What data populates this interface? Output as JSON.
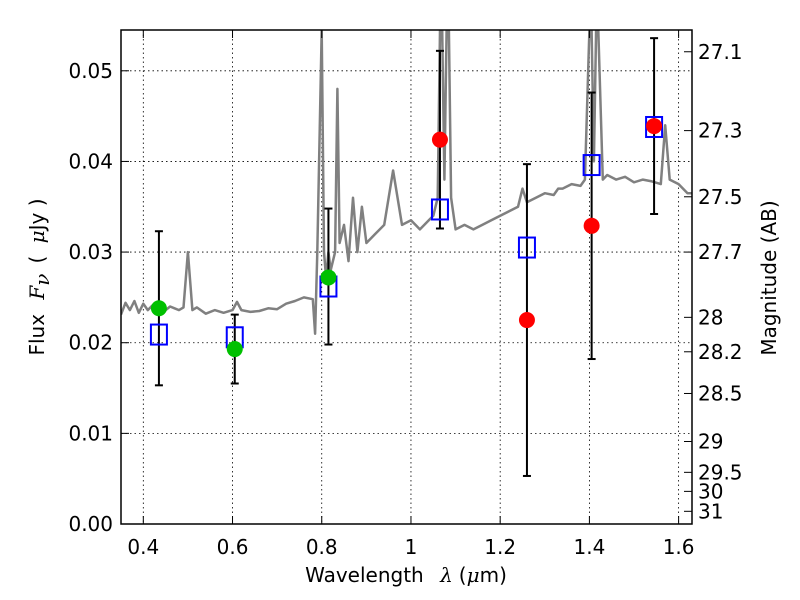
{
  "chart_data": {
    "type": "scatter",
    "xlabel": "Wavelength",
    "xlabel_symbol": "λ",
    "xlabel_unit_open": "(",
    "xlabel_unit_mu": "μ",
    "xlabel_unit_close": "m)",
    "ylabel": "Flux",
    "ylabel_symbol": "F",
    "ylabel_subscript": "ν",
    "ylabel_unit_open": "(",
    "ylabel_unit_mu": "μ",
    "ylabel_unit_close": "Jy )",
    "ylabel_right": "Magnitude (AB)",
    "xlim": [
      0.35,
      1.63
    ],
    "ylim": [
      0.0,
      0.0545
    ],
    "grid": true,
    "x_ticks": [
      0.4,
      0.6,
      0.8,
      1.0,
      1.2,
      1.4,
      1.6
    ],
    "x_tick_labels": [
      "0.4",
      "0.6",
      "0.8",
      "1",
      "1.2",
      "1.4",
      "1.6"
    ],
    "y_ticks": [
      0.0,
      0.01,
      0.02,
      0.03,
      0.04,
      0.05
    ],
    "y_tick_labels": [
      "0.00",
      "0.01",
      "0.02",
      "0.03",
      "0.04",
      "0.05"
    ],
    "right_ticks": [
      {
        "label": "27.1",
        "flux": 0.0521
      },
      {
        "label": "27.3",
        "flux": 0.0434
      },
      {
        "label": "27.5",
        "flux": 0.0361
      },
      {
        "label": "27.7",
        "flux": 0.03
      },
      {
        "label": "28",
        "flux": 0.0228
      },
      {
        "label": "28.2",
        "flux": 0.019
      },
      {
        "label": "28.5",
        "flux": 0.0144
      },
      {
        "label": "29",
        "flux": 0.0091
      },
      {
        "label": "29.5",
        "flux": 0.0057
      },
      {
        "label": "30",
        "flux": 0.0036
      },
      {
        "label": "31",
        "flux": 0.0014
      }
    ],
    "series": [
      {
        "kind": "line",
        "color": "#808080",
        "x": [
          0.35,
          0.36,
          0.37,
          0.38,
          0.39,
          0.4,
          0.41,
          0.42,
          0.43,
          0.44,
          0.45,
          0.46,
          0.47,
          0.48,
          0.49,
          0.5,
          0.51,
          0.52,
          0.54,
          0.56,
          0.58,
          0.6,
          0.61,
          0.62,
          0.64,
          0.66,
          0.68,
          0.7,
          0.72,
          0.74,
          0.76,
          0.78,
          0.785,
          0.79,
          0.8,
          0.805,
          0.81,
          0.815,
          0.82,
          0.83,
          0.835,
          0.84,
          0.85,
          0.86,
          0.87,
          0.88,
          0.89,
          0.9,
          0.92,
          0.94,
          0.96,
          0.98,
          1.0,
          1.02,
          1.04,
          1.05,
          1.06,
          1.065,
          1.07,
          1.075,
          1.08,
          1.085,
          1.09,
          1.1,
          1.12,
          1.14,
          1.16,
          1.18,
          1.2,
          1.22,
          1.24,
          1.25,
          1.26,
          1.28,
          1.3,
          1.32,
          1.33,
          1.34,
          1.36,
          1.38,
          1.39,
          1.4,
          1.405,
          1.41,
          1.415,
          1.42,
          1.43,
          1.44,
          1.46,
          1.48,
          1.5,
          1.52,
          1.54,
          1.56,
          1.57,
          1.58,
          1.6,
          1.62,
          1.63
        ],
        "y": [
          0.0231,
          0.0244,
          0.0236,
          0.0246,
          0.0233,
          0.0243,
          0.0236,
          0.0241,
          0.0237,
          0.0242,
          0.0236,
          0.024,
          0.0238,
          0.0236,
          0.0239,
          0.03,
          0.0236,
          0.0239,
          0.0232,
          0.0236,
          0.0233,
          0.0236,
          0.0245,
          0.0236,
          0.0234,
          0.0235,
          0.0238,
          0.0237,
          0.0243,
          0.0246,
          0.025,
          0.0248,
          0.021,
          0.03,
          0.0545,
          0.03,
          0.027,
          0.03,
          0.028,
          0.03,
          0.048,
          0.031,
          0.033,
          0.029,
          0.036,
          0.03,
          0.035,
          0.031,
          0.032,
          0.033,
          0.039,
          0.033,
          0.0335,
          0.0325,
          0.0335,
          0.034,
          0.036,
          0.0545,
          0.0545,
          0.038,
          0.0545,
          0.0545,
          0.036,
          0.0325,
          0.033,
          0.0325,
          0.033,
          0.0335,
          0.034,
          0.0345,
          0.035,
          0.037,
          0.0355,
          0.036,
          0.0365,
          0.0363,
          0.037,
          0.037,
          0.0375,
          0.0373,
          0.038,
          0.0545,
          0.0545,
          0.04,
          0.0545,
          0.0545,
          0.038,
          0.0385,
          0.038,
          0.0383,
          0.0377,
          0.038,
          0.0378,
          0.0375,
          0.044,
          0.038,
          0.0375,
          0.0365,
          0.0365
        ]
      },
      {
        "kind": "open-square",
        "color": "#0000ff",
        "x": [
          0.435,
          0.605,
          0.815,
          1.065,
          1.26,
          1.405,
          1.545
        ],
        "y": [
          0.0209,
          0.0206,
          0.0262,
          0.0347,
          0.0305,
          0.0396,
          0.0438
        ]
      },
      {
        "kind": "filled-circle",
        "color": "#00c000",
        "x": [
          0.435,
          0.605,
          0.815
        ],
        "y": [
          0.0238,
          0.0193,
          0.0272
        ],
        "yerr_low": [
          0.0085,
          0.0038,
          0.0074
        ],
        "yerr_high": [
          0.0085,
          0.0038,
          0.0076
        ]
      },
      {
        "kind": "filled-circle",
        "color": "#ff0000",
        "x": [
          1.065,
          1.26,
          1.405,
          1.545
        ],
        "y": [
          0.0424,
          0.0225,
          0.0329,
          0.0439
        ],
        "yerr_low": [
          0.0098,
          0.0172,
          0.0147,
          0.0097
        ],
        "yerr_high": [
          0.0098,
          0.0172,
          0.0147,
          0.0097
        ]
      }
    ]
  }
}
